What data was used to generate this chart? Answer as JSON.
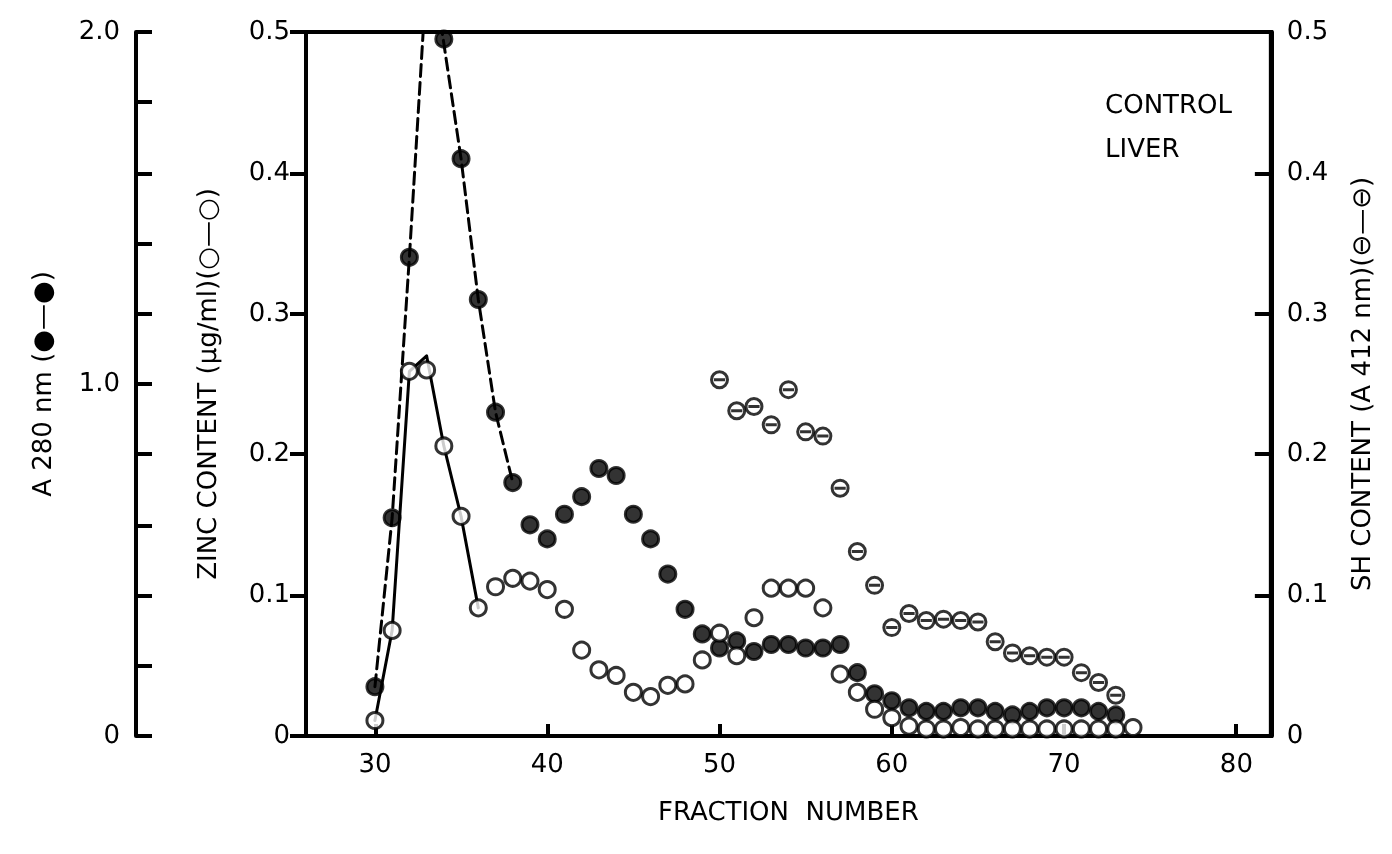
{
  "chart_data": {
    "type": "scatter",
    "xlabel": "FRACTION  NUMBER",
    "ylabel": "ZINC CONTENT (µg/ml)(○—○)",
    "y2label": "SH CONTENT (A 412 nm)(⊖—⊖)",
    "y3label": "A 280 nm (●—●)",
    "annotations": [
      "CONTROL\nLIVER"
    ],
    "xlim": [
      26,
      82
    ],
    "xticks": [
      30,
      40,
      50,
      60,
      70,
      80
    ],
    "ylim": [
      0,
      0.5
    ],
    "yticks": [
      0,
      0.1,
      0.2,
      0.3,
      0.4,
      0.5
    ],
    "y2lim": [
      0,
      0.5
    ],
    "y2ticks": [
      0,
      0.1,
      0.2,
      0.3,
      0.4,
      0.5
    ],
    "y3lim": [
      0,
      2.0
    ],
    "y3ticks": [
      0,
      {
        "value": 1.0,
        "label": "1.0"
      },
      {
        "value": 2.0,
        "label": "2.0"
      }
    ],
    "grid": false,
    "series": [
      {
        "axis": "y3",
        "color": "#000000",
        "marker": "circle",
        "x": [
          30,
          31,
          32,
          34,
          35,
          36,
          37,
          38,
          39,
          40,
          41,
          42,
          43,
          44,
          45,
          46,
          47,
          48,
          49,
          50,
          51,
          52,
          53,
          54,
          55,
          56,
          57,
          58,
          59,
          60,
          61,
          62,
          63,
          64,
          65,
          66,
          67,
          68,
          69,
          70,
          71,
          72,
          73
        ],
        "values": [
          0.14,
          0.62,
          1.36,
          1.98,
          1.64,
          1.24,
          0.92,
          0.72,
          0.6,
          0.56,
          0.63,
          0.68,
          0.76,
          0.74,
          0.63,
          0.56,
          0.46,
          0.36,
          0.29,
          0.25,
          0.27,
          0.24,
          0.26,
          0.26,
          0.25,
          0.25,
          0.26,
          0.18,
          0.12,
          0.1,
          0.08,
          0.07,
          0.07,
          0.08,
          0.08,
          0.07,
          0.06,
          0.07,
          0.08,
          0.08,
          0.08,
          0.07,
          0.06
        ]
      },
      {
        "color": "#000000",
        "marker": "circle",
        "x": [
          30,
          31,
          32,
          33,
          34,
          35,
          36,
          37,
          38,
          39,
          40,
          41,
          42,
          43,
          44,
          45,
          46,
          47,
          48,
          49,
          50,
          51,
          52,
          53,
          54,
          55,
          56,
          57,
          58,
          59,
          60,
          61,
          62,
          63,
          64,
          65,
          66,
          67,
          68,
          69,
          70,
          71,
          72,
          73,
          74
        ],
        "values": [
          0.011,
          0.075,
          0.259,
          0.26,
          0.206,
          0.156,
          0.091,
          0.106,
          0.112,
          0.11,
          0.104,
          0.09,
          0.061,
          0.047,
          0.043,
          0.031,
          0.028,
          0.036,
          0.037,
          0.054,
          0.073,
          0.057,
          0.084,
          0.105,
          0.105,
          0.105,
          0.091,
          0.044,
          0.031,
          0.019,
          0.013,
          0.007,
          0.005,
          0.005,
          0.006,
          0.005,
          0.005,
          0.005,
          0.005,
          0.005,
          0.005,
          0.005,
          0.005,
          0.005,
          0.006
        ]
      },
      {
        "axis": "y2",
        "color": "#000000",
        "x": [
          50,
          51,
          52,
          53,
          54,
          55,
          56,
          57,
          58,
          59,
          60,
          61,
          62,
          63,
          64,
          65,
          66,
          67,
          68,
          69,
          70,
          71,
          72,
          73
        ],
        "values": [
          0.253,
          0.231,
          0.234,
          0.221,
          0.246,
          0.216,
          0.213,
          0.176,
          0.131,
          0.107,
          0.077,
          0.087,
          0.082,
          0.083,
          0.082,
          0.081,
          0.067,
          0.059,
          0.057,
          0.056,
          0.056,
          0.045,
          0.038,
          0.029
        ]
      },
      {
        "type": "line",
        "axis": "y3",
        "color": "#000000",
        "marker": "none",
        "line_style": "dashed",
        "x": [
          30,
          31,
          32,
          32.8,
          33.9,
          35,
          36,
          37,
          38
        ],
        "values": [
          0.14,
          0.62,
          1.36,
          2.0,
          2.0,
          1.64,
          1.24,
          0.92,
          0.72
        ]
      },
      {
        "type": "line",
        "color": "#000000",
        "marker": "none",
        "line_style": "solid",
        "x": [
          30,
          31,
          32,
          33,
          34,
          35,
          36
        ],
        "values": [
          0.011,
          0.075,
          0.259,
          0.27,
          0.206,
          0.156,
          0.091
        ]
      }
    ]
  }
}
